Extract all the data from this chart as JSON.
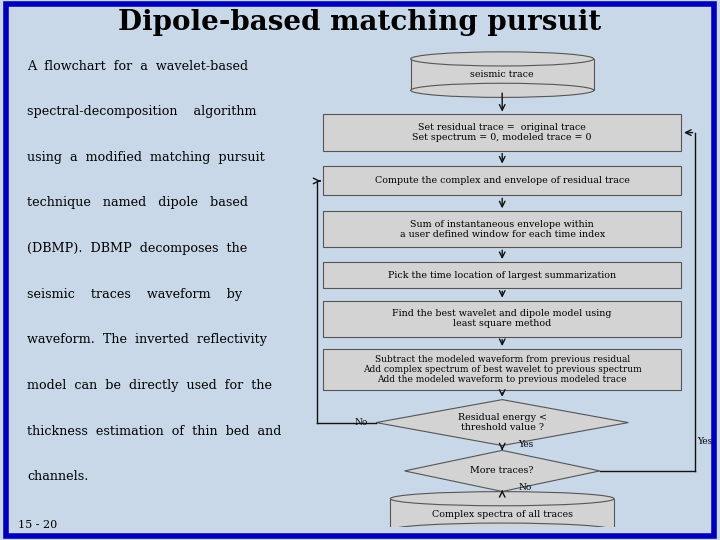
{
  "title": "Dipole-based matching pursuit",
  "title_color": "#000000",
  "title_fontsize": 20,
  "body_bg": "#C8D8E8",
  "inner_bg": "#E8EEF4",
  "border_color": "#0000BB",
  "border_lw": 4,
  "page_number": "15 - 20",
  "left_text_lines": [
    "A  flowchart  for  a  wavelet-based",
    "spectral-decomposition    algorithm",
    "using  a  modified  matching  pursuit",
    "technique   named   dipole   based",
    "(DBMP).  DBMP  decomposes  the",
    "seismic    traces    waveform    by",
    "waveform.  The  inverted  reflectivity",
    "model  can  be  directly  used  for  the",
    "thickness  estimation  of  thin  bed  and",
    "channels."
  ],
  "box_facecolor": "#D3D3D3",
  "box_edgecolor": "#555555",
  "arrow_color": "#111111",
  "cyl0_label": "seismic trace",
  "box1_label": "Set residual trace =  original trace\nSet spectrum = 0, modeled trace = 0",
  "box2_label": "Compute the complex and envelope of residual trace",
  "box3_label": "Sum of instantaneous envelope within\na user defined window for each time index",
  "box4_label": "Pick the time location of largest summarization",
  "box5_label": "Find the best wavelet and dipole model using\nleast square method",
  "box6_label": "Subtract the modeled waveform from previous residual\nAdd complex spectrum of best wavelet to previous spectrum\nAdd the modeled waveform to previous modeled trace",
  "dia1_label": "Residual energy <\nthreshold value ?",
  "dia2_label": "More traces?",
  "cyl9_label": "Complex spectra of all traces",
  "label_no1": "No",
  "label_yes1": "Yes",
  "label_yes2": "Yes",
  "label_no2": "No"
}
